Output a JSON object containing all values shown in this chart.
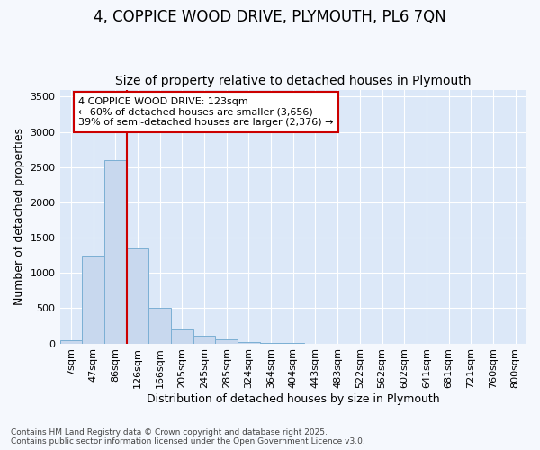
{
  "title_line1": "4, COPPICE WOOD DRIVE, PLYMOUTH, PL6 7QN",
  "title_line2": "Size of property relative to detached houses in Plymouth",
  "xlabel": "Distribution of detached houses by size in Plymouth",
  "ylabel": "Number of detached properties",
  "bar_labels": [
    "7sqm",
    "47sqm",
    "86sqm",
    "126sqm",
    "166sqm",
    "205sqm",
    "245sqm",
    "285sqm",
    "324sqm",
    "364sqm",
    "404sqm",
    "443sqm",
    "483sqm",
    "522sqm",
    "562sqm",
    "602sqm",
    "641sqm",
    "681sqm",
    "721sqm",
    "760sqm",
    "800sqm"
  ],
  "bar_values": [
    45,
    1250,
    2600,
    1350,
    500,
    200,
    110,
    55,
    25,
    6,
    3,
    1,
    0,
    0,
    0,
    0,
    0,
    0,
    0,
    0,
    0
  ],
  "bar_color": "#c8d8ee",
  "bar_edge_color": "#7bafd4",
  "vline_x": 3,
  "vline_color": "#cc0000",
  "annotation_text": "4 COPPICE WOOD DRIVE: 123sqm\n← 60% of detached houses are smaller (3,656)\n39% of semi-detached houses are larger (2,376) →",
  "annotation_box_color": "#ffffff",
  "annotation_box_edge": "#cc0000",
  "ylim": [
    0,
    3600
  ],
  "yticks": [
    0,
    500,
    1000,
    1500,
    2000,
    2500,
    3000,
    3500
  ],
  "background_color": "#f5f8fd",
  "plot_bg_color": "#dce8f8",
  "footnote": "Contains HM Land Registry data © Crown copyright and database right 2025.\nContains public sector information licensed under the Open Government Licence v3.0.",
  "title_fontsize": 12,
  "subtitle_fontsize": 10,
  "axis_label_fontsize": 9,
  "tick_fontsize": 8,
  "annotation_fontsize": 8
}
